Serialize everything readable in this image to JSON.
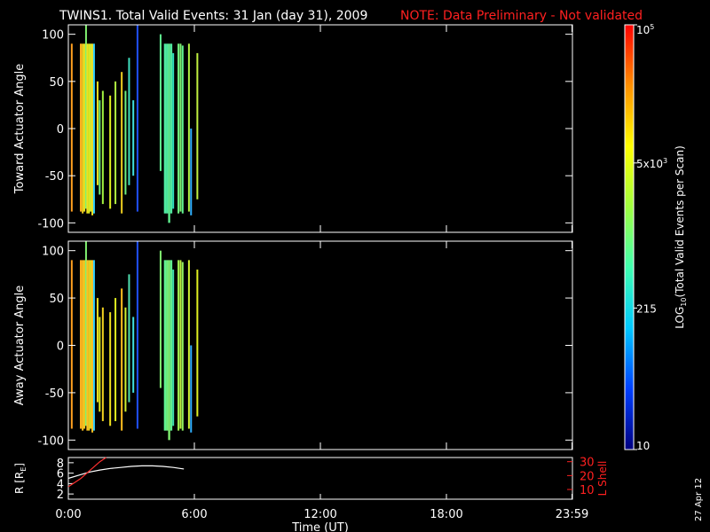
{
  "title": {
    "main": "TWINS1. Total Valid Events: 31 Jan (day  31), 2009",
    "note": "NOTE: Data Preliminary - Not validated",
    "note_color": "#ff2020"
  },
  "date_stamp": "27 Apr 12",
  "colorbar": {
    "label_prefix": "LOG",
    "label_sub": "10",
    "label_suffix": "(Total Valid  Events per Scan)",
    "scale": "log",
    "range": [
      10,
      100000
    ],
    "ticks": [
      {
        "value": 10,
        "label": "10"
      },
      {
        "value": 215,
        "label": "215"
      },
      {
        "value": 5000,
        "label": "5x10",
        "sup": "3"
      },
      {
        "value": 100000,
        "label": "10",
        "sup": "5"
      }
    ],
    "colors": [
      "#000080",
      "#0040ff",
      "#00c8ff",
      "#40ffb0",
      "#a0ff40",
      "#ffff00",
      "#ff9000",
      "#ff0000"
    ]
  },
  "chart_data": [
    {
      "type": "heatmap",
      "ylabel": "Toward Actuator Angle",
      "ylim": [
        -110,
        110
      ],
      "xlim": [
        0,
        24
      ],
      "yticks": [
        "100",
        "50",
        "0",
        "-50",
        "-100"
      ],
      "xticks": [],
      "strips": [
        {
          "x": 0.12,
          "w": 0.06,
          "y0": -88,
          "y1": 90,
          "c": "#ffa020"
        },
        {
          "x": 0.55,
          "w": 0.09,
          "y0": -88,
          "y1": 90,
          "c": "#ffb020"
        },
        {
          "x": 0.64,
          "w": 0.08,
          "y0": -90,
          "y1": 90,
          "c": "#f0d020"
        },
        {
          "x": 0.72,
          "w": 0.08,
          "y0": -88,
          "y1": 90,
          "c": "#e8e020"
        },
        {
          "x": 0.8,
          "w": 0.06,
          "y0": -85,
          "y1": 110,
          "c": "#80f070"
        },
        {
          "x": 0.86,
          "w": 0.08,
          "y0": -90,
          "y1": 90,
          "c": "#f0e020"
        },
        {
          "x": 0.94,
          "w": 0.08,
          "y0": -90,
          "y1": 90,
          "c": "#e0f020"
        },
        {
          "x": 1.02,
          "w": 0.08,
          "y0": -88,
          "y1": 90,
          "c": "#d8f030"
        },
        {
          "x": 1.1,
          "w": 0.08,
          "y0": -92,
          "y1": 90,
          "c": "#f0e020"
        },
        {
          "x": 1.18,
          "w": 0.04,
          "y0": -90,
          "y1": 90,
          "c": "#30d0ff"
        },
        {
          "x": 1.35,
          "w": 0.04,
          "y0": -60,
          "y1": 50,
          "c": "#f0e020"
        },
        {
          "x": 1.45,
          "w": 0.05,
          "y0": -70,
          "y1": 30,
          "c": "#70f080"
        },
        {
          "x": 1.6,
          "w": 0.04,
          "y0": -80,
          "y1": 40,
          "c": "#a0f040"
        },
        {
          "x": 1.95,
          "w": 0.05,
          "y0": -85,
          "y1": 35,
          "c": "#e0f020"
        },
        {
          "x": 2.2,
          "w": 0.05,
          "y0": -80,
          "y1": 50,
          "c": "#b0f040"
        },
        {
          "x": 2.5,
          "w": 0.06,
          "y0": -90,
          "y1": 60,
          "c": "#f0d020"
        },
        {
          "x": 2.68,
          "w": 0.04,
          "y0": -70,
          "y1": 40,
          "c": "#70f080"
        },
        {
          "x": 2.85,
          "w": 0.05,
          "y0": -60,
          "y1": 75,
          "c": "#40e0c0"
        },
        {
          "x": 3.05,
          "w": 0.05,
          "y0": -50,
          "y1": 30,
          "c": "#40e0e0"
        },
        {
          "x": 3.25,
          "w": 0.06,
          "y0": -88,
          "y1": 110,
          "c": "#2050ff"
        },
        {
          "x": 4.35,
          "w": 0.04,
          "y0": -45,
          "y1": 100,
          "c": "#60f090"
        },
        {
          "x": 4.55,
          "w": 0.1,
          "y0": -90,
          "y1": 90,
          "c": "#50e8a0"
        },
        {
          "x": 4.65,
          "w": 0.1,
          "y0": -90,
          "y1": 90,
          "c": "#50e8a0"
        },
        {
          "x": 4.75,
          "w": 0.1,
          "y0": -100,
          "y1": 90,
          "c": "#60f090"
        },
        {
          "x": 4.85,
          "w": 0.1,
          "y0": -90,
          "y1": 90,
          "c": "#50e8a0"
        },
        {
          "x": 4.95,
          "w": 0.05,
          "y0": -85,
          "y1": 80,
          "c": "#30e0c0"
        },
        {
          "x": 5.2,
          "w": 0.06,
          "y0": -90,
          "y1": 90,
          "c": "#70f080"
        },
        {
          "x": 5.3,
          "w": 0.06,
          "y0": -88,
          "y1": 90,
          "c": "#80f070"
        },
        {
          "x": 5.4,
          "w": 0.05,
          "y0": -90,
          "y1": 88,
          "c": "#60f090"
        },
        {
          "x": 5.7,
          "w": 0.06,
          "y0": -88,
          "y1": 90,
          "c": "#b0f040"
        },
        {
          "x": 5.8,
          "w": 0.05,
          "y0": -92,
          "y1": 0,
          "c": "#30b0ff"
        },
        {
          "x": 6.1,
          "w": 0.05,
          "y0": -75,
          "y1": 80,
          "c": "#c0f040"
        }
      ]
    },
    {
      "type": "heatmap",
      "ylabel": "Away Actuator Angle",
      "ylim": [
        -110,
        110
      ],
      "xlim": [
        0,
        24
      ],
      "yticks": [
        "100",
        "50",
        "0",
        "-50",
        "-100"
      ],
      "xticks": [],
      "strips": [
        {
          "x": 0.12,
          "w": 0.06,
          "y0": -88,
          "y1": 90,
          "c": "#ffa020"
        },
        {
          "x": 0.55,
          "w": 0.09,
          "y0": -88,
          "y1": 90,
          "c": "#ffb020"
        },
        {
          "x": 0.64,
          "w": 0.08,
          "y0": -90,
          "y1": 90,
          "c": "#ffc020"
        },
        {
          "x": 0.72,
          "w": 0.08,
          "y0": -88,
          "y1": 90,
          "c": "#f0c820"
        },
        {
          "x": 0.8,
          "w": 0.06,
          "y0": -85,
          "y1": 110,
          "c": "#80f070"
        },
        {
          "x": 0.86,
          "w": 0.08,
          "y0": -90,
          "y1": 90,
          "c": "#ffc020"
        },
        {
          "x": 0.94,
          "w": 0.08,
          "y0": -90,
          "y1": 90,
          "c": "#f0d020"
        },
        {
          "x": 1.02,
          "w": 0.08,
          "y0": -88,
          "y1": 90,
          "c": "#e0e020"
        },
        {
          "x": 1.1,
          "w": 0.08,
          "y0": -92,
          "y1": 90,
          "c": "#ffc020"
        },
        {
          "x": 1.18,
          "w": 0.04,
          "y0": -90,
          "y1": 90,
          "c": "#30d0ff"
        },
        {
          "x": 1.35,
          "w": 0.04,
          "y0": -60,
          "y1": 50,
          "c": "#f0e020"
        },
        {
          "x": 1.45,
          "w": 0.05,
          "y0": -70,
          "y1": 30,
          "c": "#e0f020"
        },
        {
          "x": 1.6,
          "w": 0.04,
          "y0": -80,
          "y1": 40,
          "c": "#f0d020"
        },
        {
          "x": 1.95,
          "w": 0.05,
          "y0": -85,
          "y1": 35,
          "c": "#f0e020"
        },
        {
          "x": 2.2,
          "w": 0.05,
          "y0": -80,
          "y1": 50,
          "c": "#e0f020"
        },
        {
          "x": 2.5,
          "w": 0.06,
          "y0": -90,
          "y1": 60,
          "c": "#ffc020"
        },
        {
          "x": 2.68,
          "w": 0.04,
          "y0": -70,
          "y1": 40,
          "c": "#d0f030"
        },
        {
          "x": 2.85,
          "w": 0.05,
          "y0": -60,
          "y1": 75,
          "c": "#50e0b0"
        },
        {
          "x": 3.05,
          "w": 0.05,
          "y0": -50,
          "y1": 30,
          "c": "#40e0e0"
        },
        {
          "x": 3.25,
          "w": 0.06,
          "y0": -88,
          "y1": 110,
          "c": "#2050ff"
        },
        {
          "x": 4.35,
          "w": 0.04,
          "y0": -45,
          "y1": 100,
          "c": "#80f070"
        },
        {
          "x": 4.55,
          "w": 0.1,
          "y0": -90,
          "y1": 90,
          "c": "#60f090"
        },
        {
          "x": 4.65,
          "w": 0.1,
          "y0": -90,
          "y1": 90,
          "c": "#70f080"
        },
        {
          "x": 4.75,
          "w": 0.1,
          "y0": -100,
          "y1": 90,
          "c": "#80f070"
        },
        {
          "x": 4.85,
          "w": 0.1,
          "y0": -90,
          "y1": 90,
          "c": "#60f090"
        },
        {
          "x": 4.95,
          "w": 0.05,
          "y0": -85,
          "y1": 80,
          "c": "#40e0b0"
        },
        {
          "x": 5.2,
          "w": 0.06,
          "y0": -90,
          "y1": 90,
          "c": "#a0f050"
        },
        {
          "x": 5.3,
          "w": 0.06,
          "y0": -88,
          "y1": 90,
          "c": "#c0f040"
        },
        {
          "x": 5.4,
          "w": 0.05,
          "y0": -90,
          "y1": 88,
          "c": "#90f060"
        },
        {
          "x": 5.7,
          "w": 0.06,
          "y0": -88,
          "y1": 90,
          "c": "#d0f030"
        },
        {
          "x": 5.8,
          "w": 0.05,
          "y0": -92,
          "y1": 0,
          "c": "#30b0ff"
        },
        {
          "x": 6.1,
          "w": 0.05,
          "y0": -75,
          "y1": 80,
          "c": "#e0f020"
        }
      ]
    },
    {
      "type": "line",
      "ylabel": "R [R",
      "ylabel_sub": "E",
      "ylabel_close": "]",
      "ylim": [
        1,
        9
      ],
      "yticks": [
        "8",
        "6",
        "4",
        "2"
      ],
      "y2label": "L Shell",
      "y2lim": [
        3,
        33
      ],
      "y2ticks": [
        "30",
        "20",
        "10"
      ],
      "xlabel": "Time (UT)",
      "xlim": [
        0,
        24
      ],
      "xticks": [
        "0:00",
        "6:00",
        "12:00",
        "18:00",
        "23:59"
      ],
      "series": [
        {
          "axis": "R",
          "color": "#ffffff",
          "x": [
            0,
            0.5,
            1.0,
            1.5,
            2.0,
            2.5,
            3.0,
            3.5,
            4.0,
            4.5,
            5.0,
            5.5
          ],
          "y": [
            5.0,
            5.6,
            6.2,
            6.6,
            6.9,
            7.1,
            7.3,
            7.4,
            7.4,
            7.3,
            7.1,
            6.8
          ]
        },
        {
          "axis": "L",
          "color": "#ff3030",
          "x": [
            0,
            0.3,
            0.6,
            0.9,
            1.2,
            1.5,
            1.8
          ],
          "y": [
            12,
            15,
            18,
            22,
            26,
            30,
            33
          ]
        }
      ]
    }
  ]
}
